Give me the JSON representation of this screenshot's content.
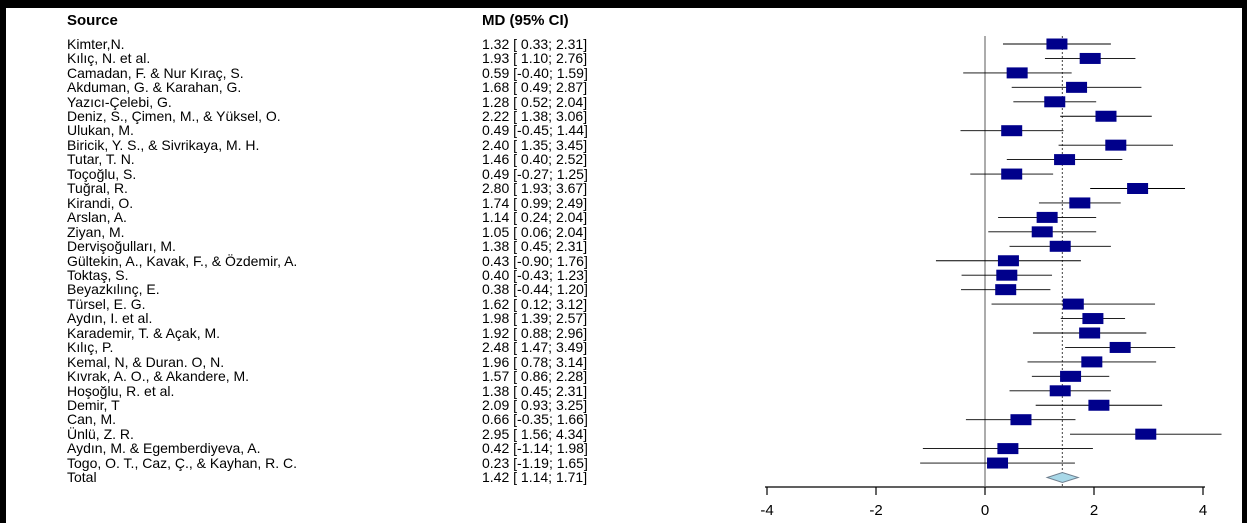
{
  "columns": {
    "source": "Source",
    "md": "MD (95% CI)"
  },
  "studies": [
    {
      "source": "Kimter,N.",
      "md_text": "1.32 [ 0.33; 2.31]",
      "md": 1.32,
      "lo": 0.33,
      "hi": 2.31
    },
    {
      "source": "Kılıç, N. et al.",
      "md_text": "1.93 [ 1.10; 2.76]",
      "md": 1.93,
      "lo": 1.1,
      "hi": 2.76
    },
    {
      "source": "Camadan, F. & Nur Kıraç, S.",
      "md_text": "0.59 [-0.40; 1.59]",
      "md": 0.59,
      "lo": -0.4,
      "hi": 1.59
    },
    {
      "source": "Akduman, G. & Karahan, G.",
      "md_text": "1.68 [ 0.49; 2.87]",
      "md": 1.68,
      "lo": 0.49,
      "hi": 2.87
    },
    {
      "source": "Yazıcı-Çelebi, G.",
      "md_text": "1.28 [ 0.52; 2.04]",
      "md": 1.28,
      "lo": 0.52,
      "hi": 2.04
    },
    {
      "source": "Deniz, S., Çimen, M., & Yüksel, O.",
      "md_text": "2.22 [ 1.38; 3.06]",
      "md": 2.22,
      "lo": 1.38,
      "hi": 3.06
    },
    {
      "source": "Ulukan, M.",
      "md_text": "0.49 [-0.45; 1.44]",
      "md": 0.49,
      "lo": -0.45,
      "hi": 1.44
    },
    {
      "source": "Biricik, Y. S., & Sivrikaya, M. H.",
      "md_text": "2.40 [ 1.35; 3.45]",
      "md": 2.4,
      "lo": 1.35,
      "hi": 3.45
    },
    {
      "source": "Tutar, T. N.",
      "md_text": "1.46 [ 0.40; 2.52]",
      "md": 1.46,
      "lo": 0.4,
      "hi": 2.52
    },
    {
      "source": "Toçoğlu, S.",
      "md_text": "0.49 [-0.27; 1.25]",
      "md": 0.49,
      "lo": -0.27,
      "hi": 1.25
    },
    {
      "source": "Tuğral, R.",
      "md_text": "2.80 [ 1.93; 3.67]",
      "md": 2.8,
      "lo": 1.93,
      "hi": 3.67
    },
    {
      "source": "Kirandi, O.",
      "md_text": "1.74 [ 0.99; 2.49]",
      "md": 1.74,
      "lo": 0.99,
      "hi": 2.49
    },
    {
      "source": "Arslan, A.",
      "md_text": "1.14 [ 0.24; 2.04]",
      "md": 1.14,
      "lo": 0.24,
      "hi": 2.04
    },
    {
      "source": "Ziyan, M.",
      "md_text": "1.05 [ 0.06; 2.04]",
      "md": 1.05,
      "lo": 0.06,
      "hi": 2.04
    },
    {
      "source": "Dervişoğulları, M.",
      "md_text": "1.38 [ 0.45; 2.31]",
      "md": 1.38,
      "lo": 0.45,
      "hi": 2.31
    },
    {
      "source": "Gültekin, A., Kavak, F., & Özdemir, A.",
      "md_text": "0.43 [-0.90; 1.76]",
      "md": 0.43,
      "lo": -0.9,
      "hi": 1.76
    },
    {
      "source": "Toktaş, S.",
      "md_text": "0.40 [-0.43; 1.23]",
      "md": 0.4,
      "lo": -0.43,
      "hi": 1.23
    },
    {
      "source": "Beyazkılınç, E.",
      "md_text": "0.38 [-0.44; 1.20]",
      "md": 0.38,
      "lo": -0.44,
      "hi": 1.2
    },
    {
      "source": "Türsel, E. G.",
      "md_text": "1.62 [ 0.12; 3.12]",
      "md": 1.62,
      "lo": 0.12,
      "hi": 3.12
    },
    {
      "source": "Aydın, I. et al.",
      "md_text": "1.98 [ 1.39; 2.57]",
      "md": 1.98,
      "lo": 1.39,
      "hi": 2.57
    },
    {
      "source": "Karademir, T. & Açak, M.",
      "md_text": "1.92 [ 0.88; 2.96]",
      "md": 1.92,
      "lo": 0.88,
      "hi": 2.96
    },
    {
      "source": "Kılıç, P.",
      "md_text": "2.48 [ 1.47; 3.49]",
      "md": 2.48,
      "lo": 1.47,
      "hi": 3.49
    },
    {
      "source": "Kemal, N, & Duran. O, N.",
      "md_text": "1.96 [ 0.78; 3.14]",
      "md": 1.96,
      "lo": 0.78,
      "hi": 3.14
    },
    {
      "source": "Kıvrak, A. O., & Akandere, M.",
      "md_text": "1.57 [ 0.86; 2.28]",
      "md": 1.57,
      "lo": 0.86,
      "hi": 2.28
    },
    {
      "source": "Hoşoğlu, R. et al.",
      "md_text": "1.38 [ 0.45; 2.31]",
      "md": 1.38,
      "lo": 0.45,
      "hi": 2.31
    },
    {
      "source": "Demir, T",
      "md_text": "2.09 [ 0.93; 3.25]",
      "md": 2.09,
      "lo": 0.93,
      "hi": 3.25
    },
    {
      "source": "Can, M.",
      "md_text": "0.66 [-0.35; 1.66]",
      "md": 0.66,
      "lo": -0.35,
      "hi": 1.66
    },
    {
      "source": "Ünlü, Z. R.",
      "md_text": "2.95 [ 1.56; 4.34]",
      "md": 2.95,
      "lo": 1.56,
      "hi": 4.34
    },
    {
      "source": "Aydın, M. & Egemberdiyeva, A.",
      "md_text": "0.42 [-1.14; 1.98]",
      "md": 0.42,
      "lo": -1.14,
      "hi": 1.98
    },
    {
      "source": "Togo, O. T., Caz, Ç., & Kayhan, R. C.",
      "md_text": "0.23 [-1.19; 1.65]",
      "md": 0.23,
      "lo": -1.19,
      "hi": 1.65
    }
  ],
  "total": {
    "source": "Total",
    "md_text": "1.42 [ 1.14; 1.71]",
    "md": 1.42,
    "lo": 1.14,
    "hi": 1.71
  },
  "chart_data": {
    "type": "forest",
    "xlim": [
      -4.5,
      4.5
    ],
    "x_ticks": [
      -4,
      -2,
      0,
      2,
      4
    ],
    "x_tick_labels": [
      "-4",
      "-2",
      "0",
      "2",
      "4"
    ],
    "reference_line": 0,
    "pooled_estimate": 1.42,
    "grid": false,
    "colors": {
      "square": "#00008b",
      "ci_line": "#000000",
      "diamond_fill": "#a8d8e8",
      "diamond_stroke": "#708090",
      "reference_line": "#808080",
      "pooled_line": "#606060"
    }
  }
}
